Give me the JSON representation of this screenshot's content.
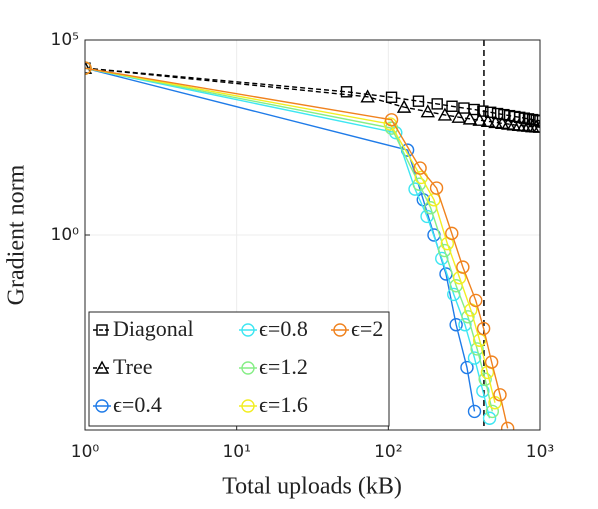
{
  "chart_data": {
    "type": "line",
    "xlabel": "Total uploads (kB)",
    "ylabel": "Gradient norm",
    "xscale": "log",
    "yscale": "log",
    "xlim": [
      1,
      1000
    ],
    "ylim": [
      1e-05,
      100000
    ],
    "xticks": [
      {
        "value": 1,
        "label": "10⁰"
      },
      {
        "value": 10,
        "label": "10¹"
      },
      {
        "value": 100,
        "label": "10²"
      },
      {
        "value": 1000,
        "label": "10³"
      }
    ],
    "yticks": [
      {
        "value": 1,
        "label": "10⁰"
      },
      {
        "value": 100000,
        "label": "10⁵"
      }
    ],
    "grid": true,
    "vline": 427,
    "legend": "lower left",
    "series": [
      {
        "name": "Diagonal",
        "color": "#000000",
        "marker": "square",
        "linestyle": "dashed",
        "x": [
          1,
          53,
          105,
          158,
          210,
          263,
          315,
          368,
          420,
          473,
          525,
          578,
          630,
          683,
          735,
          788,
          840,
          893,
          945,
          1000
        ],
        "values": [
          19000,
          4700,
          3400,
          2700,
          2300,
          2000,
          1800,
          1650,
          1500,
          1400,
          1300,
          1220,
          1150,
          1090,
          1040,
          990,
          950,
          910,
          880,
          850
        ]
      },
      {
        "name": "Tree",
        "color": "#000000",
        "marker": "triangle",
        "linestyle": "dashed",
        "x": [
          1,
          73,
          127,
          182,
          236,
          291,
          345,
          400,
          454,
          509,
          563,
          618,
          672,
          727,
          781,
          836,
          890,
          945,
          1000
        ],
        "values": [
          19000,
          3500,
          1900,
          1450,
          1200,
          1050,
          950,
          880,
          820,
          770,
          730,
          700,
          670,
          650,
          630,
          615,
          600,
          590,
          580
        ]
      },
      {
        "name": "ϵ=0.4",
        "color": "#1f7be8",
        "marker": "circle",
        "linestyle": "solid",
        "x": [
          1,
          134,
          170,
          200,
          240,
          280,
          330,
          370
        ],
        "values": [
          19000,
          150,
          8,
          1,
          0.1,
          0.005,
          0.0004,
          3e-05
        ]
      },
      {
        "name": "ϵ=0.8",
        "color": "#3ee6f2",
        "marker": "circle",
        "linestyle": "solid",
        "x": [
          1,
          112,
          150,
          180,
          225,
          270,
          320,
          370,
          420,
          465
        ],
        "values": [
          19000,
          420,
          15,
          3,
          0.25,
          0.03,
          0.005,
          0.0007,
          0.0001,
          2e-05
        ]
      },
      {
        "name": "ϵ=1.2",
        "color": "#86ee86",
        "marker": "circle",
        "linestyle": "solid",
        "x": [
          1,
          105,
          160,
          190,
          235,
          280,
          335,
          385,
          435,
          485
        ],
        "values": [
          19000,
          550,
          20,
          5,
          0.4,
          0.05,
          0.008,
          0.0012,
          0.0002,
          3e-05
        ]
      },
      {
        "name": "ϵ=1.6",
        "color": "#f2ee22",
        "marker": "circle",
        "linestyle": "solid",
        "x": [
          1,
          103,
          165,
          200,
          245,
          295,
          350,
          400,
          450,
          505
        ],
        "values": [
          19000,
          700,
          30,
          8,
          0.6,
          0.08,
          0.012,
          0.002,
          0.0003,
          5e-05
        ]
      },
      {
        "name": "ϵ=2",
        "color": "#f0821e",
        "marker": "circle",
        "linestyle": "solid",
        "x": [
          1,
          105,
          162,
          208,
          262,
          310,
          377,
          425,
          480,
          545,
          612
        ],
        "values": [
          19000,
          900,
          52,
          16,
          1.1,
          0.15,
          0.021,
          0.004,
          0.00055,
          8e-05,
          1.1e-05
        ]
      }
    ]
  }
}
